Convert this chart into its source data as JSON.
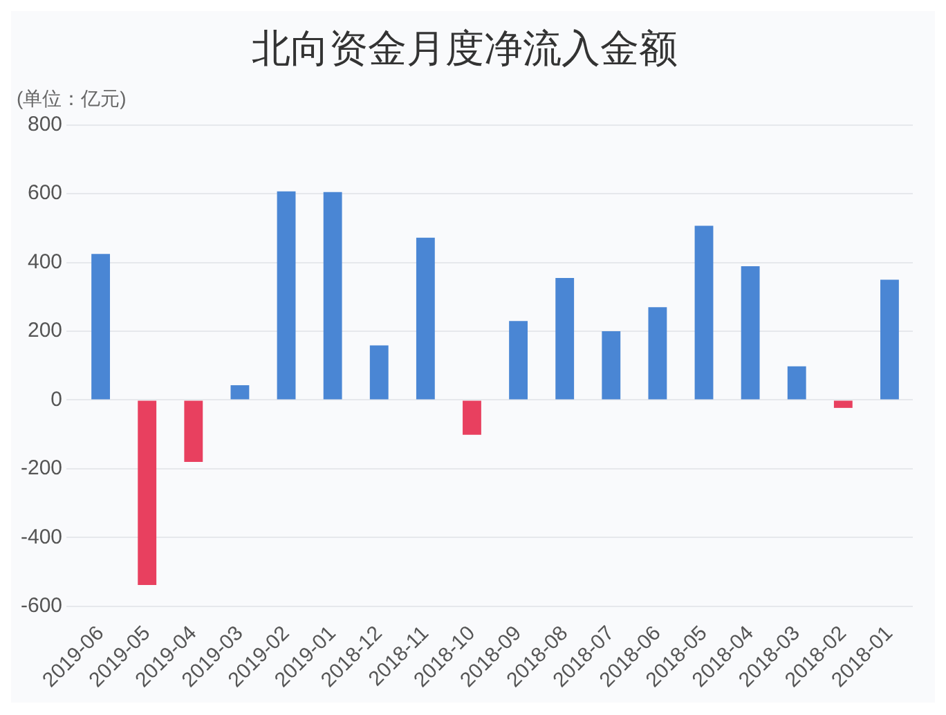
{
  "chart_data": {
    "type": "bar",
    "title": "北向资金月度净流入金额",
    "subtitle": "(单位：亿元)",
    "categories": [
      "2019-06",
      "2019-05",
      "2019-04",
      "2019-03",
      "2019-02",
      "2019-01",
      "2018-12",
      "2018-11",
      "2018-10",
      "2018-09",
      "2018-08",
      "2018-07",
      "2018-06",
      "2018-05",
      "2018-04",
      "2018-03",
      "2018-02",
      "2018-01"
    ],
    "values": [
      425,
      -538,
      -180,
      43,
      607,
      605,
      159,
      472,
      -101,
      230,
      355,
      200,
      270,
      507,
      389,
      98,
      -23,
      350
    ],
    "colors": [
      "#4a86d4",
      "#e8405f",
      "#e8405f",
      "#4a86d4",
      "#4a86d4",
      "#4a86d4",
      "#4a86d4",
      "#4a86d4",
      "#e8405f",
      "#4a86d4",
      "#4a86d4",
      "#4a86d4",
      "#4a86d4",
      "#4a86d4",
      "#4a86d4",
      "#4a86d4",
      "#e8405f",
      "#4a86d4"
    ],
    "ylim": [
      -600,
      800
    ],
    "yticks": [
      -600,
      -400,
      -200,
      0,
      200,
      400,
      600,
      800
    ],
    "grid": "y"
  }
}
